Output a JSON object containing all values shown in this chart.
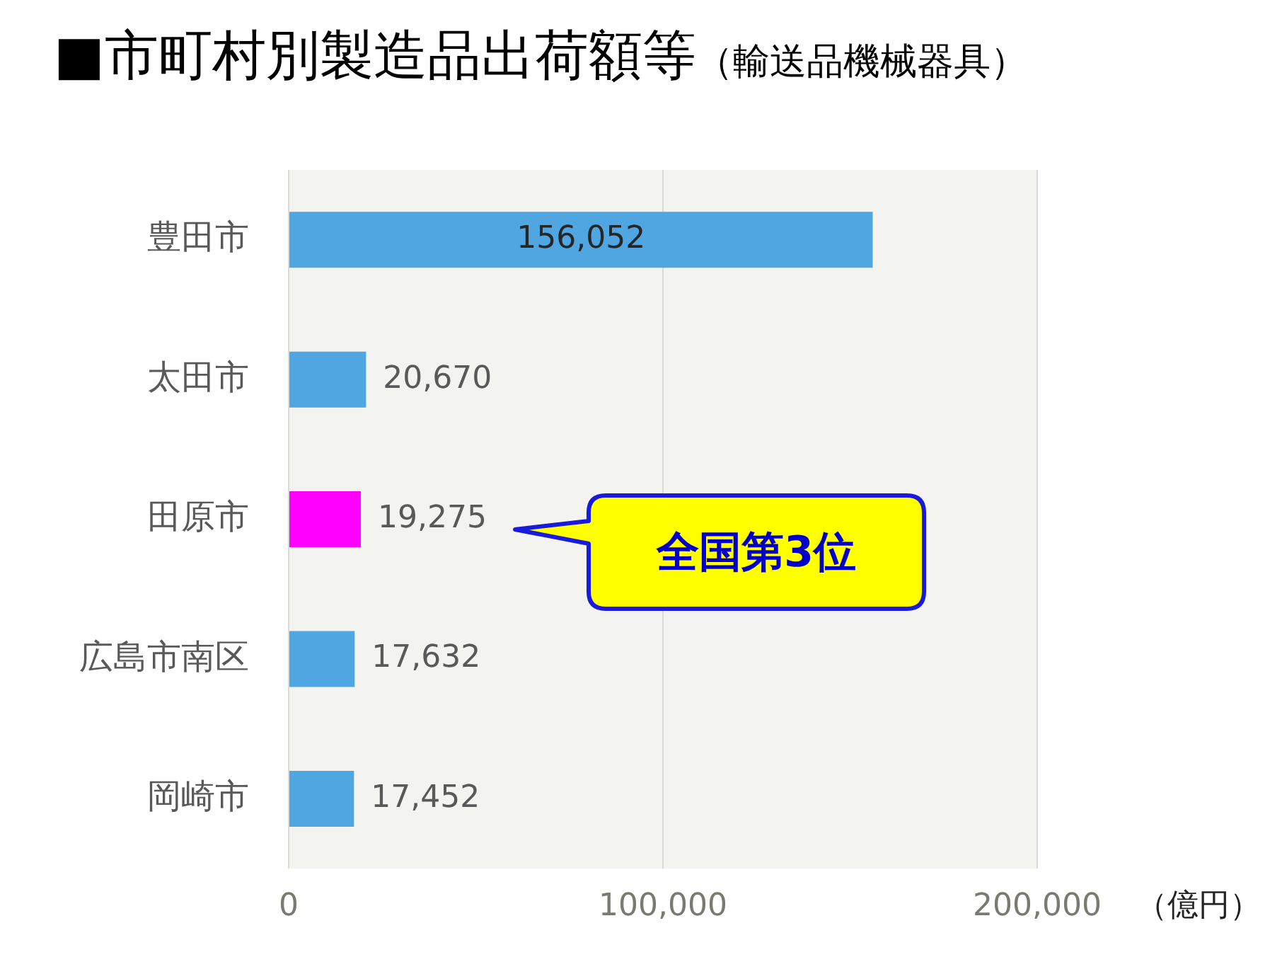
{
  "chart_data": {
    "type": "bar",
    "orientation": "horizontal",
    "title": "■市町村別製造品出荷額等",
    "subtitle": "（輸送品機械器具）",
    "xlabel": "（億円）",
    "categories": [
      "豊田市",
      "太田市",
      "田原市",
      "広島市南区",
      "岡崎市"
    ],
    "values": [
      156052,
      20670,
      19275,
      17632,
      17452
    ],
    "colors": [
      "#4fa6e0",
      "#4fa6e0",
      "#ff00ff",
      "#4fa6e0",
      "#4fa6e0"
    ],
    "xlim": [
      0,
      200000
    ],
    "xticks": [
      {
        "value": 0,
        "label": "0"
      },
      {
        "value": 100000,
        "label": "100,000"
      },
      {
        "value": 200000,
        "label": "200,000"
      }
    ],
    "value_labels": [
      "156,052",
      "20,670",
      "19,275",
      "17,632",
      "17,452"
    ],
    "grid": "x",
    "legend": false,
    "annotations": [
      "全国第3位"
    ]
  }
}
